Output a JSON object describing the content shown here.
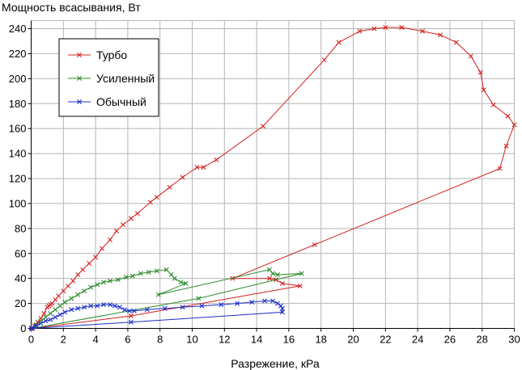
{
  "chart_data": {
    "type": "line",
    "title": "",
    "ylabel": "Мощность всасывания, Вт",
    "xlabel": "Разрежение, кРа",
    "xlim": [
      0,
      30
    ],
    "ylim": [
      0,
      240
    ],
    "xticks": [
      0,
      2,
      4,
      6,
      8,
      10,
      12,
      14,
      16,
      18,
      20,
      22,
      24,
      26,
      28,
      30
    ],
    "yticks": [
      0,
      20,
      40,
      60,
      80,
      100,
      120,
      140,
      160,
      180,
      200,
      220,
      240
    ],
    "xtick_labels": [
      "0",
      "2",
      "4",
      "6",
      "8",
      "10",
      "12",
      "14",
      "16",
      "18",
      "20",
      "22",
      "24",
      "26",
      "28",
      "30"
    ],
    "ytick_labels": [
      "0",
      "20",
      "40",
      "60",
      "80",
      "100",
      "120",
      "140",
      "160",
      "180",
      "200",
      "220",
      "240"
    ],
    "grid": true,
    "legend_position": "top-left",
    "series": [
      {
        "name": "Турбо",
        "color": "#d42020",
        "marker": "x",
        "x": [
          0,
          0.2,
          0.4,
          0.6,
          0.8,
          1.0,
          1.1,
          1.2,
          1.3,
          1.5,
          1.7,
          2.0,
          2.3,
          2.6,
          2.9,
          3.2,
          3.6,
          4.0,
          4.4,
          4.9,
          5.3,
          5.7,
          6.2,
          6.6,
          7.4,
          7.8,
          8.6,
          9.4,
          10.3,
          10.7,
          11.5,
          14.4,
          18.2,
          19.1,
          20.4,
          21.3,
          22.0,
          23.0,
          24.3,
          25.4,
          26.4,
          27.3,
          27.9,
          28.1,
          28.7,
          29.6,
          30.0,
          29.5,
          29.1,
          17.6,
          12.5,
          14.8,
          15.2,
          15.6,
          16.7,
          6.2,
          0.1
        ],
        "y": [
          0,
          2,
          5,
          8,
          12,
          17,
          18,
          19,
          20,
          23,
          26,
          30,
          34,
          38,
          43,
          47,
          52,
          57,
          64,
          71,
          78,
          83,
          88,
          92,
          101,
          105,
          113,
          121,
          129,
          129,
          135,
          162,
          215,
          229,
          238,
          240,
          241,
          241,
          238,
          235,
          229,
          218,
          205,
          191,
          179,
          170,
          163,
          146,
          128,
          67,
          40,
          40,
          39,
          36,
          34,
          10,
          0
        ]
      },
      {
        "name": "Усиленный",
        "color": "#2a8a2a",
        "marker": "x",
        "x": [
          0,
          0.3,
          0.6,
          0.9,
          1.2,
          1.5,
          1.8,
          2.1,
          2.5,
          2.9,
          3.3,
          3.7,
          4.1,
          4.5,
          4.9,
          5.4,
          5.9,
          6.3,
          6.8,
          7.3,
          7.8,
          8.4,
          8.7,
          8.9,
          9.3,
          9.6,
          7.9,
          14.8,
          15.0,
          15.3,
          16.8,
          10.4,
          0.05
        ],
        "y": [
          0,
          3,
          6,
          9,
          12,
          15,
          18,
          21,
          24,
          27,
          30,
          33,
          35,
          37,
          38,
          39,
          41,
          42,
          44,
          45,
          46,
          47,
          43,
          40,
          37,
          36,
          27,
          47,
          44,
          43,
          44,
          24,
          0
        ]
      },
      {
        "name": "Обычный",
        "color": "#1a2fc8",
        "marker": "x",
        "x": [
          0,
          0.3,
          0.6,
          0.9,
          1.2,
          1.5,
          1.8,
          2.1,
          2.5,
          2.9,
          3.3,
          3.7,
          4.1,
          4.5,
          4.9,
          5.2,
          5.5,
          5.8,
          6.1,
          6.4,
          7.2,
          8.3,
          9.4,
          10.6,
          11.8,
          12.8,
          13.7,
          14.5,
          15.0,
          15.3,
          15.5,
          15.6,
          15.6,
          6.2,
          0.05
        ],
        "y": [
          0,
          2,
          4,
          6,
          7,
          9,
          11,
          13,
          15,
          16,
          17,
          18,
          18,
          19,
          19,
          18,
          17,
          15,
          14,
          14,
          15,
          16,
          17,
          18,
          19,
          20,
          21,
          22,
          22,
          20,
          18,
          16,
          13,
          5,
          0
        ]
      }
    ]
  }
}
